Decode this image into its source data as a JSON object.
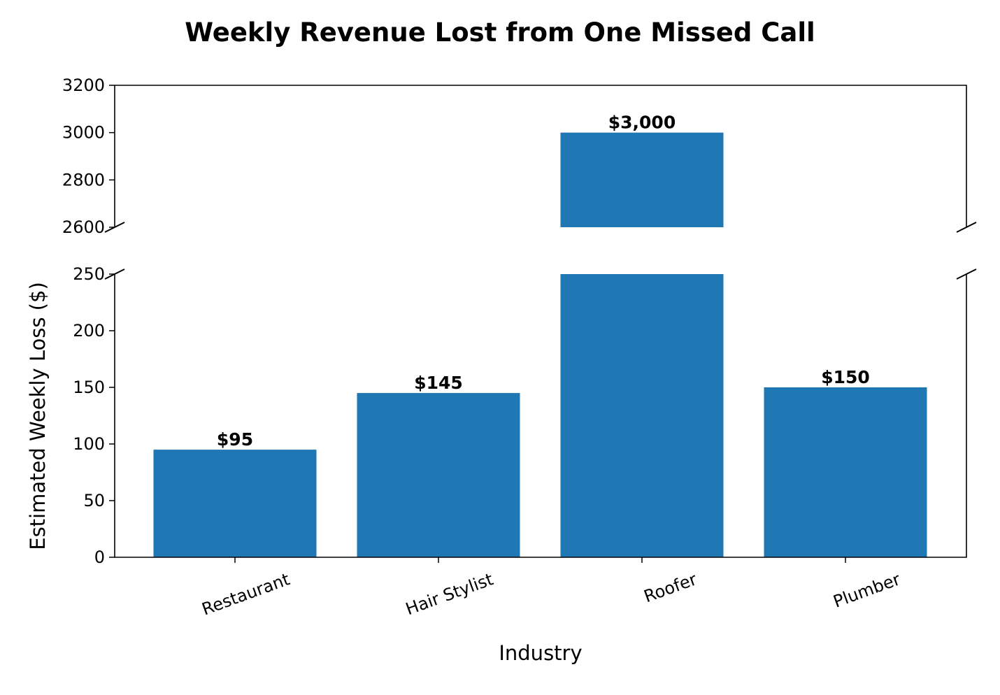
{
  "chart_data": {
    "type": "bar",
    "title": "Weekly Revenue Lost from One Missed Call",
    "xlabel": "Industry",
    "ylabel": "Estimated Weekly Loss ($)",
    "categories": [
      "Restaurant",
      "Hair Stylist",
      "Roofer",
      "Plumber"
    ],
    "values": [
      95,
      145,
      3000,
      150
    ],
    "data_labels": [
      "$95",
      "$145",
      "$3,000",
      "$150"
    ],
    "broken_axis": true,
    "upper_ylim": [
      2600,
      3200
    ],
    "upper_yticks": [
      "2600",
      "2800",
      "3000",
      "3200"
    ],
    "lower_ylim": [
      0,
      250
    ],
    "lower_yticks": [
      "0",
      "50",
      "100",
      "150",
      "200",
      "250"
    ],
    "bar_color": "#1f77b4",
    "grid": false
  }
}
